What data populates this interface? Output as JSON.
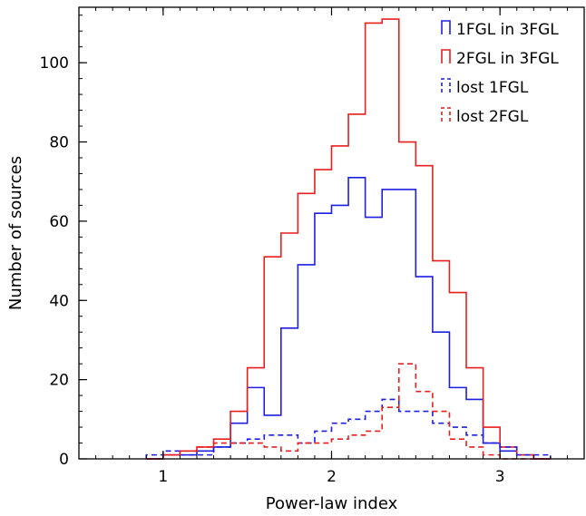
{
  "chart_data": {
    "type": "histogram",
    "title": "",
    "xlabel": "Power-law index",
    "ylabel": "Number of sources",
    "xlim": [
      0.5,
      3.5
    ],
    "ylim": [
      0,
      114
    ],
    "x_ticks": [
      1,
      2,
      3
    ],
    "y_ticks": [
      0,
      20,
      40,
      60,
      80,
      100
    ],
    "x_minor_step": 0.1,
    "y_minor_step": 4,
    "grid": false,
    "legend_position": "top-right",
    "bin_edges": [
      0.9,
      1.0,
      1.1,
      1.2,
      1.3,
      1.4,
      1.5,
      1.6,
      1.7,
      1.8,
      1.9,
      2.0,
      2.1,
      2.2,
      2.3,
      2.4,
      2.5,
      2.6,
      2.7,
      2.8,
      2.9,
      3.0,
      3.1,
      3.2,
      3.3
    ],
    "series": [
      {
        "name": "1FGL in 3FGL",
        "color": "#1f1fe0",
        "style": "solid",
        "x": [
          0.95,
          1.05,
          1.15,
          1.25,
          1.35,
          1.45,
          1.55,
          1.65,
          1.75,
          1.85,
          1.95,
          2.05,
          2.15,
          2.25,
          2.35,
          2.45,
          2.55,
          2.65,
          2.75,
          2.85,
          2.95,
          3.05,
          3.15,
          3.25
        ],
        "values": [
          0,
          1,
          1,
          2,
          3,
          9,
          18,
          11,
          33,
          49,
          62,
          64,
          71,
          61,
          68,
          68,
          46,
          32,
          18,
          15,
          4,
          2,
          1,
          0
        ]
      },
      {
        "name": "2FGL in 3FGL",
        "color": "#e81f1f",
        "style": "solid",
        "x": [
          0.95,
          1.05,
          1.15,
          1.25,
          1.35,
          1.45,
          1.55,
          1.65,
          1.75,
          1.85,
          1.95,
          2.05,
          2.15,
          2.25,
          2.35,
          2.45,
          2.55,
          2.65,
          2.75,
          2.85,
          2.95,
          3.05,
          3.15,
          3.25
        ],
        "values": [
          0,
          1,
          2,
          3,
          5,
          12,
          23,
          51,
          57,
          67,
          73,
          79,
          87,
          110,
          111,
          80,
          74,
          50,
          42,
          23,
          8,
          3,
          1,
          0
        ]
      },
      {
        "name": "lost 1FGL",
        "color": "#1f1fe0",
        "style": "dashed",
        "x": [
          0.95,
          1.05,
          1.15,
          1.25,
          1.35,
          1.45,
          1.55,
          1.65,
          1.75,
          1.85,
          1.95,
          2.05,
          2.15,
          2.25,
          2.35,
          2.45,
          2.55,
          2.65,
          2.75,
          2.85,
          2.95,
          3.05,
          3.15,
          3.25
        ],
        "values": [
          1,
          2,
          1,
          1,
          3,
          4,
          5,
          6,
          6,
          4,
          7,
          9,
          10,
          12,
          15,
          12,
          12,
          9,
          8,
          6,
          4,
          3,
          1,
          1
        ]
      },
      {
        "name": "lost 2FGL",
        "color": "#e81f1f",
        "style": "dashed",
        "x": [
          0.95,
          1.05,
          1.15,
          1.25,
          1.35,
          1.45,
          1.55,
          1.65,
          1.75,
          1.85,
          1.95,
          2.05,
          2.15,
          2.25,
          2.35,
          2.45,
          2.55,
          2.65,
          2.75,
          2.85,
          2.95,
          3.05,
          3.15,
          3.25
        ],
        "values": [
          0,
          1,
          2,
          3,
          4,
          4,
          4,
          3,
          2,
          4,
          4,
          5,
          6,
          7,
          13,
          24,
          17,
          12,
          5,
          3,
          1,
          0,
          0,
          0
        ]
      }
    ]
  }
}
